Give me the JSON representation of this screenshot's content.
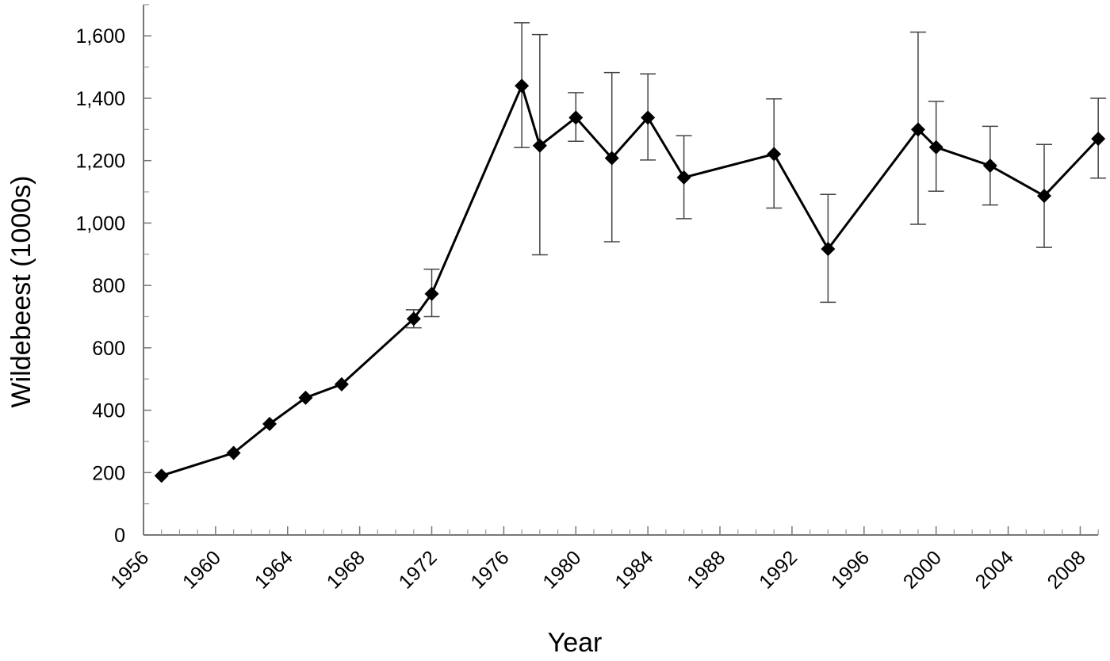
{
  "chart_data": {
    "type": "line",
    "title": "",
    "xlabel": "Year",
    "ylabel": "Wildebeest (1000s)",
    "xlim": [
      1956,
      2009
    ],
    "ylim": [
      0,
      1700
    ],
    "x_ticks": [
      1956,
      1960,
      1964,
      1968,
      1972,
      1976,
      1980,
      1984,
      1988,
      1992,
      1996,
      2000,
      2004,
      2008
    ],
    "x_tick_labels": [
      "1956",
      "1960",
      "1964",
      "1968",
      "1972",
      "1976",
      "1980",
      "1984",
      "1988",
      "1992",
      "1996",
      "2000",
      "2004",
      "2008"
    ],
    "y_ticks": [
      0,
      200,
      400,
      600,
      800,
      1000,
      1200,
      1400,
      1600
    ],
    "y_tick_labels": [
      "0",
      "200",
      "400",
      "600",
      "800",
      "1,000",
      "1,200",
      "1,400",
      "1,600"
    ],
    "grid": false,
    "legend": "none",
    "marker": "diamond",
    "series": [
      {
        "x": [
          1957,
          1961,
          1963,
          1965,
          1967,
          1971,
          1972,
          1977,
          1978,
          1980,
          1982,
          1984,
          1986,
          1991,
          1994,
          1999,
          2000,
          2003,
          2006,
          2009
        ],
        "y": [
          190,
          263,
          356,
          440,
          483,
          693,
          773,
          1440,
          1248,
          1338,
          1208,
          1338,
          1146,
          1221,
          917,
          1300,
          1243,
          1184,
          1087,
          1270
        ],
        "err_low": [
          null,
          null,
          null,
          null,
          null,
          664,
          700,
          1242,
          898,
          1262,
          940,
          1202,
          1014,
          1048,
          746,
          996,
          1102,
          1058,
          922,
          1144
        ],
        "err_high": [
          null,
          null,
          null,
          null,
          null,
          722,
          852,
          1642,
          1604,
          1418,
          1482,
          1478,
          1280,
          1398,
          1092,
          1612,
          1390,
          1310,
          1252,
          1400
        ]
      }
    ]
  }
}
